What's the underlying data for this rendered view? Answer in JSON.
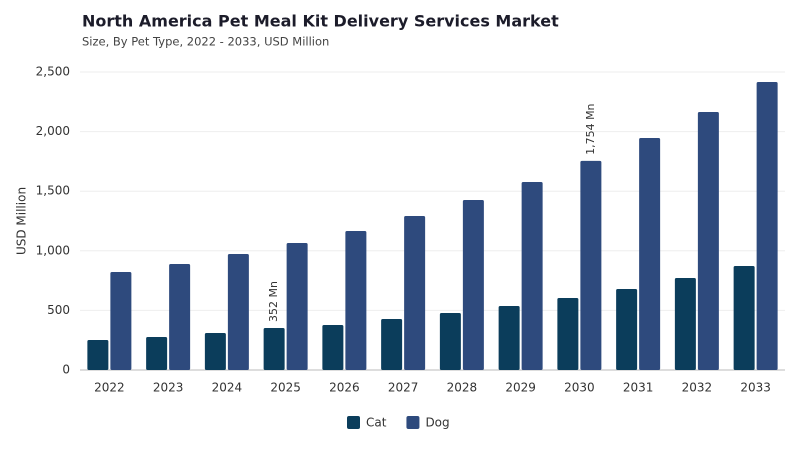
{
  "chart_data": {
    "type": "bar",
    "title": "North America Pet Meal Kit Delivery Services Market",
    "subtitle": "Size, By Pet Type, 2022 - 2033, USD Million",
    "y_label": "USD Million",
    "categories": [
      "2022",
      "2023",
      "2024",
      "2025",
      "2026",
      "2027",
      "2028",
      "2029",
      "2030",
      "2031",
      "2032",
      "2033"
    ],
    "series": [
      {
        "name": "Cat",
        "color": "#0b3d5b",
        "values": [
          252,
          277,
          310,
          352,
          378,
          428,
          478,
          537,
          604,
          680,
          772,
          872
        ],
        "value_labels": [
          null,
          null,
          null,
          "352 Mn",
          null,
          null,
          null,
          null,
          null,
          null,
          null,
          null
        ]
      },
      {
        "name": "Dog",
        "color": "#2e4a7d",
        "values": [
          822,
          889,
          973,
          1065,
          1166,
          1292,
          1426,
          1577,
          1754,
          1946,
          2164,
          2416
        ],
        "value_labels": [
          null,
          null,
          null,
          null,
          null,
          null,
          null,
          null,
          "1,754 Mn",
          null,
          null,
          null
        ]
      }
    ],
    "ylim": [
      0,
      2500
    ],
    "yticks": [
      0,
      500,
      {
        "value": 1000,
        "label": "1,000"
      },
      {
        "value": 1500,
        "label": "1,500"
      },
      {
        "value": 2000,
        "label": "2,000"
      },
      {
        "value": 2500,
        "label": "2,500"
      }
    ],
    "grid": true,
    "legend": "bottom"
  }
}
